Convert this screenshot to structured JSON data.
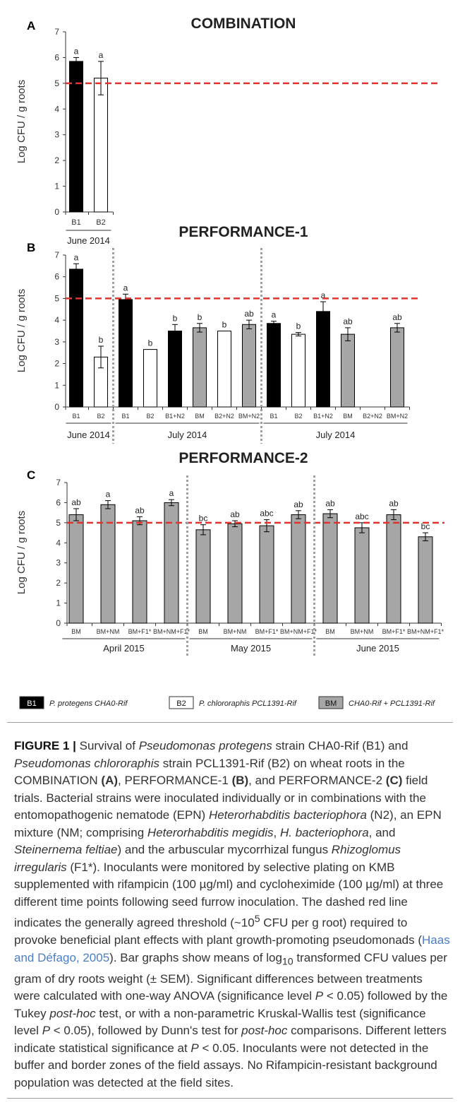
{
  "colors": {
    "threshold": "#e8302c",
    "B1": "#000000",
    "B2": "#ffffff",
    "BM": "#a6a6a6",
    "axis": "#333333",
    "separator": "#a0a0a0",
    "caption_link": "#4a7ec9"
  },
  "chart_data": [
    {
      "type": "bar",
      "panel": "A",
      "title": "COMBINATION",
      "ylabel": "Log CFU / g roots",
      "ylim": [
        0,
        7
      ],
      "threshold": 5,
      "categories": [
        "B1",
        "B2"
      ],
      "values": [
        5.85,
        5.2
      ],
      "errors": [
        0.15,
        0.65
      ],
      "letters": [
        "a",
        "a"
      ],
      "fills": [
        "B1",
        "B2"
      ],
      "groups": [
        {
          "label": "June 2014",
          "start": 0,
          "end": 1
        }
      ]
    },
    {
      "type": "bar",
      "panel": "B",
      "title": "PERFORMANCE-1",
      "ylabel": "Log CFU / g roots",
      "ylim": [
        0,
        7
      ],
      "threshold": 5,
      "categories": [
        "B1",
        "B2",
        "B1",
        "B2",
        "B1+N2",
        "BM",
        "B2+N2",
        "BM+N2",
        "B1",
        "B2",
        "B1+N2",
        "BM",
        "B2+N2",
        "BM+N2"
      ],
      "values": [
        6.35,
        2.3,
        4.95,
        2.65,
        3.5,
        3.65,
        3.5,
        3.8,
        3.85,
        3.35,
        4.4,
        3.35,
        0,
        3.65
      ],
      "errors": [
        0.25,
        0.5,
        0.25,
        0,
        0.3,
        0.2,
        0,
        0.2,
        0.1,
        0.08,
        0.45,
        0.3,
        0,
        0.2
      ],
      "letters": [
        "a",
        "b",
        "a",
        "b",
        "b",
        "b",
        "b",
        "ab",
        "a",
        "b",
        "a",
        "ab",
        "",
        "ab"
      ],
      "fills": [
        "B1",
        "B2",
        "B1",
        "B2",
        "B1",
        "BM",
        "B2",
        "BM",
        "B1",
        "B2",
        "B1",
        "BM",
        "B2",
        "BM"
      ],
      "separators_after": [
        1,
        7
      ],
      "groups": [
        {
          "label": "June 2014",
          "start": 0,
          "end": 1
        },
        {
          "label": "July 2014",
          "start": 2,
          "end": 7
        },
        {
          "label": "July 2014",
          "start": 8,
          "end": 13
        }
      ]
    },
    {
      "type": "bar",
      "panel": "C",
      "title": "PERFORMANCE-2",
      "ylabel": "Log CFU / g roots",
      "ylim": [
        0,
        7
      ],
      "threshold": 5,
      "categories": [
        "BM",
        "BM+NM",
        "BM+F1*",
        "BM+NM+F1*",
        "BM",
        "BM+NM",
        "BM+F1*",
        "BM+NM+F1*",
        "BM",
        "BM+NM",
        "BM+F1*",
        "BM+NM+F1*"
      ],
      "values": [
        5.4,
        5.9,
        5.1,
        6.0,
        4.65,
        4.95,
        4.85,
        5.4,
        5.45,
        4.75,
        5.4,
        4.3
      ],
      "errors": [
        0.3,
        0.2,
        0.2,
        0.15,
        0.25,
        0.15,
        0.3,
        0.2,
        0.2,
        0.25,
        0.25,
        0.2
      ],
      "letters": [
        "ab",
        "a",
        "ab",
        "a",
        "bc",
        "ab",
        "abc",
        "ab",
        "ab",
        "abc",
        "ab",
        "bc"
      ],
      "fills": [
        "BM",
        "BM",
        "BM",
        "BM",
        "BM",
        "BM",
        "BM",
        "BM",
        "BM",
        "BM",
        "BM",
        "BM"
      ],
      "separators_after": [
        3,
        7
      ],
      "groups": [
        {
          "label": "April 2015",
          "start": 0,
          "end": 3
        },
        {
          "label": "May 2015",
          "start": 4,
          "end": 7
        },
        {
          "label": "June 2015",
          "start": 8,
          "end": 11
        }
      ]
    }
  ],
  "legend": {
    "items": [
      {
        "key": "B1",
        "box_label": "B1",
        "label": "P. protegens CHA0-Rif"
      },
      {
        "key": "B2",
        "box_label": "B2",
        "label": "P. chlororaphis PCL1391-Rif"
      },
      {
        "key": "BM",
        "box_label": "BM",
        "label": "CHA0-Rif + PCL1391-Rif"
      }
    ]
  },
  "caption": {
    "lead": "FIGURE 1 |",
    "t01": " Survival of ",
    "t02": "Pseudomonas protegens",
    "t03": " strain CHA0-Rif (B1) and ",
    "t04": "Pseudomonas chlororaphis",
    "t05": " strain PCL1391-Rif (B2) on wheat roots in the COMBINATION ",
    "t06": "(A)",
    "t07": ", PERFORMANCE-1 ",
    "t08": "(B)",
    "t09": ", and PERFORMANCE-2 ",
    "t10": "(C)",
    "t11": " field trials. Bacterial strains were inoculated individually or in combinations with the entomopathogenic nematode (EPN) ",
    "t12": "Heterorhabditis bacteriophora",
    "t13": " (N2), an EPN mixture (NM; comprising ",
    "t14": "Heterorhabditis megidis",
    "t15": ", ",
    "t16": "H. bacteriophora",
    "t17": ", and ",
    "t18": "Steinernema feltiae",
    "t19": ") and the arbuscular mycorrhizal fungus ",
    "t20": "Rhizoglomus irregularis",
    "t21": " (F1*). Inoculants were monitored by selective plating on KMB supplemented with rifampicin (100 µg/ml) and cycloheximide (100 µg/ml) at three different time points following seed furrow inoculation. The dashed red line indicates the generally agreed threshold (~10",
    "t22": "5",
    "t23": " CFU per g root) required to provoke beneficial plant effects with plant growth-promoting pseudomonads (",
    "t24": "Haas and Défago, 2005",
    "t25": "). Bar graphs show means of log",
    "t26": "10",
    "t27": " transformed CFU values per gram of dry roots weight (± SEM). Significant differences between treatments were calculated with one-way ANOVA (significance level ",
    "t28": "P",
    "t29": " < 0.05) followed by the Tukey ",
    "t30": "post-hoc",
    "t31": " test, or with a non-parametric Kruskal-Wallis test (significance level ",
    "t32": "P",
    "t33": " < 0.05), followed by Dunn's test for ",
    "t34": "post-hoc",
    "t35": " comparisons. Different letters indicate statistical significance at ",
    "t36": "P",
    "t37": " < 0.05. Inoculants were not detected in the buffer and border zones of the field assays. No Rifampicin-resistant background population was detected at the field sites."
  }
}
